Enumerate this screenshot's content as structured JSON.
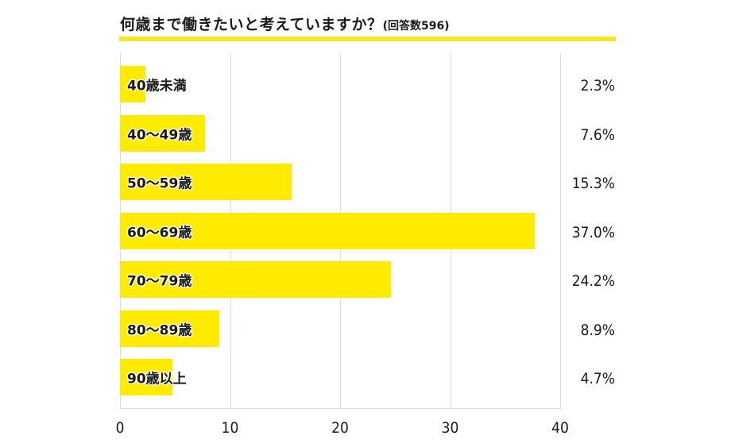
{
  "title": {
    "main": "何歳まで働きたいと考えていますか？",
    "sub": "(回答数596)"
  },
  "colors": {
    "bar": "#FFEB00",
    "title_rule": "#F5E62A",
    "grid": "#DCDCDC",
    "text": "#1A1A1A"
  },
  "chart_data": {
    "type": "bar",
    "orientation": "horizontal",
    "title": "何歳まで働きたいと考えていますか？(回答数596)",
    "categories": [
      "40歳未満",
      "40〜49歳",
      "50〜59歳",
      "60〜69歳",
      "70〜79歳",
      "80〜89歳",
      "90歳以上"
    ],
    "values": [
      2.3,
      7.6,
      15.3,
      37.0,
      24.2,
      8.9,
      4.7
    ],
    "value_labels": [
      "2.3%",
      "7.6%",
      "15.3%",
      "37.0%",
      "24.2%",
      "8.9%",
      "4.7%"
    ],
    "xlabel": "",
    "ylabel": "",
    "xlim": [
      0,
      40
    ],
    "xticks": [
      "0",
      "10",
      "20",
      "30",
      "40"
    ],
    "grid": true,
    "legend": null
  }
}
